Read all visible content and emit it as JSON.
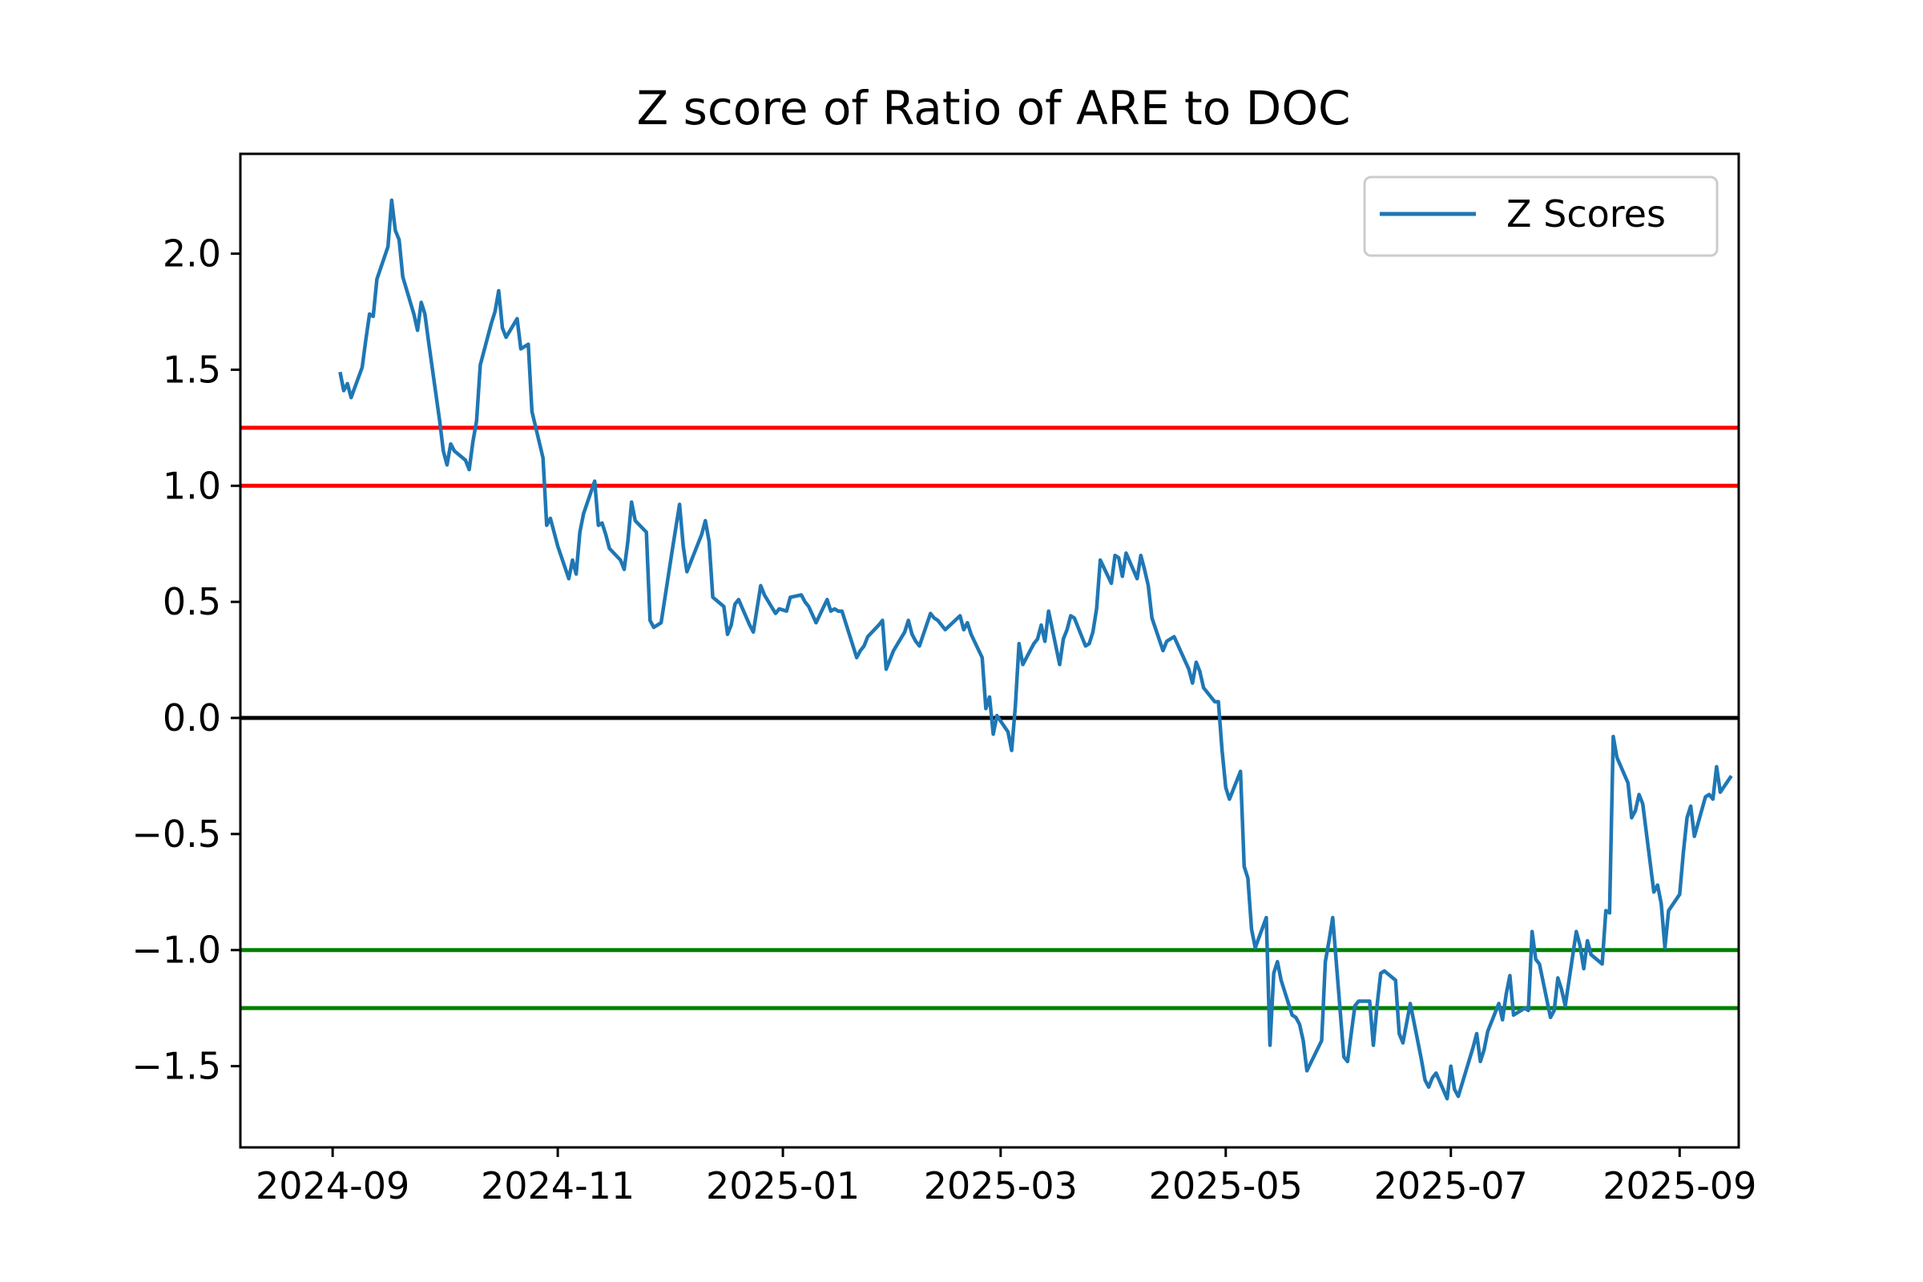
{
  "chart_data": {
    "type": "line",
    "title": "Z score of Ratio of ARE to DOC",
    "xlabel": "",
    "ylabel": "",
    "xlim": [
      "2024-08-07",
      "2025-09-17"
    ],
    "ylim": [
      -1.85,
      2.43
    ],
    "x_ticks": [
      "2024-09",
      "2024-11",
      "2025-01",
      "2025-03",
      "2025-05",
      "2025-07",
      "2025-09"
    ],
    "y_ticks": [
      "2.0",
      "1.5",
      "1.0",
      "0.5",
      "0.0",
      "−0.5",
      "−1.0",
      "−1.5"
    ],
    "y_tick_values": [
      2.0,
      1.5,
      1.0,
      0.5,
      0.0,
      -0.5,
      -1.0,
      -1.5
    ],
    "grid": false,
    "legend": {
      "position": "top-right",
      "entries": [
        "Z Scores"
      ]
    },
    "reference_lines": [
      {
        "y": 1.25,
        "color": "#ff0000"
      },
      {
        "y": 1.0,
        "color": "#ff0000"
      },
      {
        "y": 0.0,
        "color": "#000000"
      },
      {
        "y": -1.0,
        "color": "#008000"
      },
      {
        "y": -1.25,
        "color": "#008000"
      }
    ],
    "series": [
      {
        "name": "Z Scores",
        "color": "#1f77b4",
        "points": [
          [
            "2024-09-03",
            1.49
          ],
          [
            "2024-09-04",
            1.41
          ],
          [
            "2024-09-05",
            1.44
          ],
          [
            "2024-09-06",
            1.38
          ],
          [
            "2024-09-09",
            1.51
          ],
          [
            "2024-09-10",
            1.63
          ],
          [
            "2024-09-11",
            1.74
          ],
          [
            "2024-09-12",
            1.73
          ],
          [
            "2024-09-13",
            1.89
          ],
          [
            "2024-09-16",
            2.03
          ],
          [
            "2024-09-17",
            2.23
          ],
          [
            "2024-09-18",
            2.1
          ],
          [
            "2024-09-19",
            2.06
          ],
          [
            "2024-09-20",
            1.9
          ],
          [
            "2024-09-23",
            1.74
          ],
          [
            "2024-09-24",
            1.67
          ],
          [
            "2024-09-25",
            1.79
          ],
          [
            "2024-09-26",
            1.74
          ],
          [
            "2024-09-27",
            1.62
          ],
          [
            "2024-09-30",
            1.28
          ],
          [
            "2024-10-01",
            1.15
          ],
          [
            "2024-10-02",
            1.09
          ],
          [
            "2024-10-03",
            1.18
          ],
          [
            "2024-10-04",
            1.15
          ],
          [
            "2024-10-07",
            1.11
          ],
          [
            "2024-10-08",
            1.07
          ],
          [
            "2024-10-09",
            1.19
          ],
          [
            "2024-10-10",
            1.28
          ],
          [
            "2024-10-11",
            1.52
          ],
          [
            "2024-10-14",
            1.7
          ],
          [
            "2024-10-15",
            1.75
          ],
          [
            "2024-10-16",
            1.84
          ],
          [
            "2024-10-17",
            1.68
          ],
          [
            "2024-10-18",
            1.64
          ],
          [
            "2024-10-21",
            1.72
          ],
          [
            "2024-10-22",
            1.59
          ],
          [
            "2024-10-23",
            1.6
          ],
          [
            "2024-10-24",
            1.61
          ],
          [
            "2024-10-25",
            1.32
          ],
          [
            "2024-10-28",
            1.12
          ],
          [
            "2024-10-29",
            0.83
          ],
          [
            "2024-10-30",
            0.86
          ],
          [
            "2024-10-31",
            0.8
          ],
          [
            "2024-11-01",
            0.74
          ],
          [
            "2024-11-04",
            0.6
          ],
          [
            "2024-11-05",
            0.68
          ],
          [
            "2024-11-06",
            0.62
          ],
          [
            "2024-11-07",
            0.8
          ],
          [
            "2024-11-08",
            0.88
          ],
          [
            "2024-11-11",
            1.02
          ],
          [
            "2024-11-12",
            0.83
          ],
          [
            "2024-11-13",
            0.84
          ],
          [
            "2024-11-14",
            0.79
          ],
          [
            "2024-11-15",
            0.73
          ],
          [
            "2024-11-18",
            0.68
          ],
          [
            "2024-11-19",
            0.64
          ],
          [
            "2024-11-20",
            0.76
          ],
          [
            "2024-11-21",
            0.93
          ],
          [
            "2024-11-22",
            0.85
          ],
          [
            "2024-11-25",
            0.8
          ],
          [
            "2024-11-26",
            0.42
          ],
          [
            "2024-11-27",
            0.39
          ],
          [
            "2024-11-29",
            0.41
          ],
          [
            "2024-12-02",
            0.72
          ],
          [
            "2024-12-03",
            0.82
          ],
          [
            "2024-12-04",
            0.92
          ],
          [
            "2024-12-05",
            0.74
          ],
          [
            "2024-12-06",
            0.63
          ],
          [
            "2024-12-09",
            0.75
          ],
          [
            "2024-12-10",
            0.79
          ],
          [
            "2024-12-11",
            0.85
          ],
          [
            "2024-12-12",
            0.76
          ],
          [
            "2024-12-13",
            0.52
          ],
          [
            "2024-12-16",
            0.48
          ],
          [
            "2024-12-17",
            0.36
          ],
          [
            "2024-12-18",
            0.4
          ],
          [
            "2024-12-19",
            0.49
          ],
          [
            "2024-12-20",
            0.51
          ],
          [
            "2024-12-23",
            0.4
          ],
          [
            "2024-12-24",
            0.37
          ],
          [
            "2024-12-26",
            0.57
          ],
          [
            "2024-12-27",
            0.53
          ],
          [
            "2024-12-30",
            0.45
          ],
          [
            "2024-12-31",
            0.47
          ],
          [
            "2025-01-02",
            0.46
          ],
          [
            "2025-01-03",
            0.52
          ],
          [
            "2025-01-06",
            0.53
          ],
          [
            "2025-01-07",
            0.5
          ],
          [
            "2025-01-08",
            0.48
          ],
          [
            "2025-01-10",
            0.41
          ],
          [
            "2025-01-13",
            0.51
          ],
          [
            "2025-01-14",
            0.46
          ],
          [
            "2025-01-15",
            0.47
          ],
          [
            "2025-01-16",
            0.46
          ],
          [
            "2025-01-17",
            0.46
          ],
          [
            "2025-01-21",
            0.26
          ],
          [
            "2025-01-22",
            0.29
          ],
          [
            "2025-01-23",
            0.31
          ],
          [
            "2025-01-24",
            0.35
          ],
          [
            "2025-01-27",
            0.4
          ],
          [
            "2025-01-28",
            0.42
          ],
          [
            "2025-01-29",
            0.21
          ],
          [
            "2025-01-30",
            0.25
          ],
          [
            "2025-01-31",
            0.29
          ],
          [
            "2025-02-03",
            0.37
          ],
          [
            "2025-02-04",
            0.42
          ],
          [
            "2025-02-05",
            0.36
          ],
          [
            "2025-02-06",
            0.33
          ],
          [
            "2025-02-07",
            0.31
          ],
          [
            "2025-02-10",
            0.45
          ],
          [
            "2025-02-11",
            0.43
          ],
          [
            "2025-02-12",
            0.42
          ],
          [
            "2025-02-13",
            0.4
          ],
          [
            "2025-02-14",
            0.38
          ],
          [
            "2025-02-18",
            0.44
          ],
          [
            "2025-02-19",
            0.38
          ],
          [
            "2025-02-20",
            0.41
          ],
          [
            "2025-02-21",
            0.36
          ],
          [
            "2025-02-24",
            0.26
          ],
          [
            "2025-02-25",
            0.04
          ],
          [
            "2025-02-26",
            0.09
          ],
          [
            "2025-02-27",
            -0.07
          ],
          [
            "2025-02-28",
            0.01
          ],
          [
            "2025-03-03",
            -0.06
          ],
          [
            "2025-03-04",
            -0.14
          ],
          [
            "2025-03-05",
            0.05
          ],
          [
            "2025-03-06",
            0.32
          ],
          [
            "2025-03-07",
            0.23
          ],
          [
            "2025-03-10",
            0.32
          ],
          [
            "2025-03-11",
            0.34
          ],
          [
            "2025-03-12",
            0.4
          ],
          [
            "2025-03-13",
            0.33
          ],
          [
            "2025-03-14",
            0.46
          ],
          [
            "2025-03-17",
            0.23
          ],
          [
            "2025-03-18",
            0.34
          ],
          [
            "2025-03-19",
            0.38
          ],
          [
            "2025-03-20",
            0.44
          ],
          [
            "2025-03-21",
            0.43
          ],
          [
            "2025-03-24",
            0.31
          ],
          [
            "2025-03-25",
            0.32
          ],
          [
            "2025-03-26",
            0.37
          ],
          [
            "2025-03-27",
            0.47
          ],
          [
            "2025-03-28",
            0.68
          ],
          [
            "2025-03-31",
            0.58
          ],
          [
            "2025-04-01",
            0.7
          ],
          [
            "2025-04-02",
            0.69
          ],
          [
            "2025-04-03",
            0.61
          ],
          [
            "2025-04-04",
            0.71
          ],
          [
            "2025-04-07",
            0.6
          ],
          [
            "2025-04-08",
            0.7
          ],
          [
            "2025-04-09",
            0.64
          ],
          [
            "2025-04-10",
            0.57
          ],
          [
            "2025-04-11",
            0.43
          ],
          [
            "2025-04-14",
            0.29
          ],
          [
            "2025-04-15",
            0.33
          ],
          [
            "2025-04-16",
            0.34
          ],
          [
            "2025-04-17",
            0.35
          ],
          [
            "2025-04-21",
            0.21
          ],
          [
            "2025-04-22",
            0.15
          ],
          [
            "2025-04-23",
            0.24
          ],
          [
            "2025-04-24",
            0.2
          ],
          [
            "2025-04-25",
            0.13
          ],
          [
            "2025-04-28",
            0.07
          ],
          [
            "2025-04-29",
            0.07
          ],
          [
            "2025-04-30",
            -0.14
          ],
          [
            "2025-05-01",
            -0.3
          ],
          [
            "2025-05-02",
            -0.35
          ],
          [
            "2025-05-05",
            -0.23
          ],
          [
            "2025-05-06",
            -0.64
          ],
          [
            "2025-05-07",
            -0.69
          ],
          [
            "2025-05-08",
            -0.91
          ],
          [
            "2025-05-09",
            -0.99
          ],
          [
            "2025-05-12",
            -0.86
          ],
          [
            "2025-05-13",
            -1.41
          ],
          [
            "2025-05-14",
            -1.1
          ],
          [
            "2025-05-15",
            -1.05
          ],
          [
            "2025-05-16",
            -1.13
          ],
          [
            "2025-05-19",
            -1.28
          ],
          [
            "2025-05-20",
            -1.29
          ],
          [
            "2025-05-21",
            -1.32
          ],
          [
            "2025-05-22",
            -1.39
          ],
          [
            "2025-05-23",
            -1.52
          ],
          [
            "2025-05-27",
            -1.39
          ],
          [
            "2025-05-28",
            -1.05
          ],
          [
            "2025-05-29",
            -0.96
          ],
          [
            "2025-05-30",
            -0.86
          ],
          [
            "2025-06-02",
            -1.46
          ],
          [
            "2025-06-03",
            -1.48
          ],
          [
            "2025-06-04",
            -1.36
          ],
          [
            "2025-06-05",
            -1.24
          ],
          [
            "2025-06-06",
            -1.22
          ],
          [
            "2025-06-09",
            -1.22
          ],
          [
            "2025-06-10",
            -1.41
          ],
          [
            "2025-06-11",
            -1.24
          ],
          [
            "2025-06-12",
            -1.1
          ],
          [
            "2025-06-13",
            -1.09
          ],
          [
            "2025-06-16",
            -1.13
          ],
          [
            "2025-06-17",
            -1.36
          ],
          [
            "2025-06-18",
            -1.4
          ],
          [
            "2025-06-20",
            -1.23
          ],
          [
            "2025-06-23",
            -1.47
          ],
          [
            "2025-06-24",
            -1.56
          ],
          [
            "2025-06-25",
            -1.59
          ],
          [
            "2025-06-26",
            -1.55
          ],
          [
            "2025-06-27",
            -1.53
          ],
          [
            "2025-06-30",
            -1.64
          ],
          [
            "2025-07-01",
            -1.5
          ],
          [
            "2025-07-02",
            -1.6
          ],
          [
            "2025-07-03",
            -1.63
          ],
          [
            "2025-07-07",
            -1.42
          ],
          [
            "2025-07-08",
            -1.36
          ],
          [
            "2025-07-09",
            -1.48
          ],
          [
            "2025-07-10",
            -1.43
          ],
          [
            "2025-07-11",
            -1.35
          ],
          [
            "2025-07-14",
            -1.23
          ],
          [
            "2025-07-15",
            -1.3
          ],
          [
            "2025-07-16",
            -1.19
          ],
          [
            "2025-07-17",
            -1.11
          ],
          [
            "2025-07-18",
            -1.28
          ],
          [
            "2025-07-21",
            -1.25
          ],
          [
            "2025-07-22",
            -1.26
          ],
          [
            "2025-07-23",
            -0.92
          ],
          [
            "2025-07-24",
            -1.04
          ],
          [
            "2025-07-25",
            -1.06
          ],
          [
            "2025-07-28",
            -1.29
          ],
          [
            "2025-07-29",
            -1.26
          ],
          [
            "2025-07-30",
            -1.12
          ],
          [
            "2025-07-31",
            -1.17
          ],
          [
            "2025-08-01",
            -1.24
          ],
          [
            "2025-08-04",
            -0.92
          ],
          [
            "2025-08-05",
            -0.98
          ],
          [
            "2025-08-06",
            -1.08
          ],
          [
            "2025-08-07",
            -0.96
          ],
          [
            "2025-08-08",
            -1.02
          ],
          [
            "2025-08-11",
            -1.06
          ],
          [
            "2025-08-12",
            -0.83
          ],
          [
            "2025-08-13",
            -0.84
          ],
          [
            "2025-08-14",
            -0.08
          ],
          [
            "2025-08-15",
            -0.17
          ],
          [
            "2025-08-18",
            -0.28
          ],
          [
            "2025-08-19",
            -0.43
          ],
          [
            "2025-08-20",
            -0.4
          ],
          [
            "2025-08-21",
            -0.33
          ],
          [
            "2025-08-22",
            -0.37
          ],
          [
            "2025-08-25",
            -0.75
          ],
          [
            "2025-08-26",
            -0.72
          ],
          [
            "2025-08-27",
            -0.8
          ],
          [
            "2025-08-28",
            -0.99
          ],
          [
            "2025-08-29",
            -0.83
          ],
          [
            "2025-09-01",
            -0.76
          ],
          [
            "2025-09-02",
            -0.58
          ],
          [
            "2025-09-03",
            -0.43
          ],
          [
            "2025-09-04",
            -0.38
          ],
          [
            "2025-09-05",
            -0.51
          ],
          [
            "2025-09-08",
            -0.34
          ],
          [
            "2025-09-09",
            -0.33
          ],
          [
            "2025-09-10",
            -0.35
          ],
          [
            "2025-09-11",
            -0.21
          ],
          [
            "2025-09-12",
            -0.32
          ],
          [
            "2025-09-15",
            -0.25
          ]
        ]
      }
    ]
  }
}
